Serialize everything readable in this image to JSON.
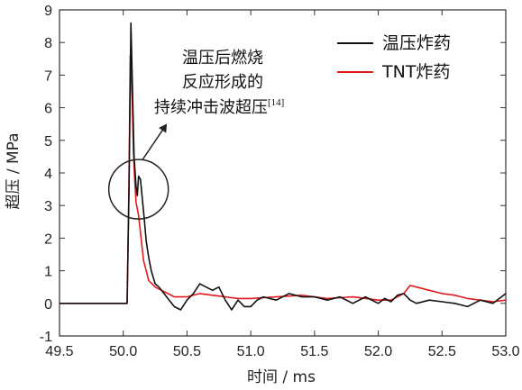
{
  "chart_data": {
    "type": "line",
    "xlabel": "时间 / ms",
    "ylabel": "超压 / MPa",
    "xlim": [
      49.5,
      53.0
    ],
    "ylim": [
      -1,
      9
    ],
    "xticks": [
      "49.5",
      "50.0",
      "50.5",
      "51.0",
      "51.5",
      "52.0",
      "52.5",
      "53.0"
    ],
    "yticks": [
      "-1",
      "0",
      "1",
      "2",
      "3",
      "4",
      "5",
      "6",
      "7",
      "8",
      "9"
    ],
    "grid": false,
    "legend": "top-right",
    "annotation": {
      "lines": [
        "温压后燃烧",
        "反应形成的",
        "持续冲击波超压"
      ],
      "superscript": "[14]",
      "circle_center": [
        50.12,
        3.5
      ],
      "arrow_target": [
        50.15,
        4.4
      ]
    },
    "series": [
      {
        "name": "温压炸药",
        "color": "#111111",
        "x": [
          49.5,
          50.03,
          50.045,
          50.06,
          50.07,
          50.085,
          50.1,
          50.11,
          50.12,
          50.135,
          50.15,
          50.165,
          50.18,
          50.2,
          50.22,
          50.25,
          50.28,
          50.32,
          50.36,
          50.4,
          50.45,
          50.5,
          50.55,
          50.6,
          50.65,
          50.7,
          50.75,
          50.8,
          50.85,
          50.9,
          50.95,
          51.0,
          51.05,
          51.1,
          51.2,
          51.3,
          51.4,
          51.5,
          51.6,
          51.7,
          51.8,
          51.9,
          52.0,
          52.05,
          52.1,
          52.15,
          52.2,
          52.25,
          52.3,
          52.4,
          52.5,
          52.6,
          52.7,
          52.8,
          52.9,
          53.0
        ],
        "y": [
          0.0,
          0.0,
          3.5,
          8.6,
          7.0,
          4.5,
          3.6,
          3.3,
          3.9,
          3.8,
          3.2,
          2.6,
          1.9,
          1.4,
          1.0,
          0.6,
          0.5,
          0.3,
          0.1,
          -0.1,
          -0.2,
          0.1,
          0.3,
          0.6,
          0.5,
          0.4,
          0.5,
          0.1,
          -0.2,
          0.1,
          -0.1,
          -0.1,
          0.1,
          0.2,
          0.1,
          0.3,
          0.2,
          0.2,
          0.1,
          0.2,
          0.0,
          0.2,
          0.0,
          0.15,
          0.05,
          0.25,
          0.3,
          0.1,
          0.0,
          0.1,
          0.05,
          0.0,
          -0.1,
          0.1,
          0.0,
          0.3
        ]
      },
      {
        "name": "TNT炸药",
        "color": "#e31a1c",
        "x": [
          49.5,
          50.03,
          50.045,
          50.055,
          50.07,
          50.08,
          50.09,
          50.1,
          50.12,
          50.14,
          50.16,
          50.18,
          50.2,
          50.25,
          50.3,
          50.35,
          50.4,
          50.5,
          50.6,
          50.7,
          50.8,
          50.9,
          51.0,
          51.2,
          51.4,
          51.6,
          51.8,
          52.0,
          52.1,
          52.2,
          52.25,
          52.3,
          52.4,
          52.5,
          52.6,
          52.7,
          52.8,
          52.9,
          53.0
        ],
        "y": [
          0.0,
          0.0,
          3.8,
          7.6,
          6.3,
          4.7,
          3.8,
          3.1,
          2.7,
          2.0,
          1.3,
          1.0,
          0.7,
          0.5,
          0.4,
          0.3,
          0.2,
          0.2,
          0.3,
          0.25,
          0.2,
          0.15,
          0.15,
          0.2,
          0.25,
          0.15,
          0.2,
          0.1,
          0.1,
          0.3,
          0.55,
          0.5,
          0.4,
          0.3,
          0.25,
          0.15,
          0.1,
          0.05,
          0.1
        ]
      }
    ]
  }
}
